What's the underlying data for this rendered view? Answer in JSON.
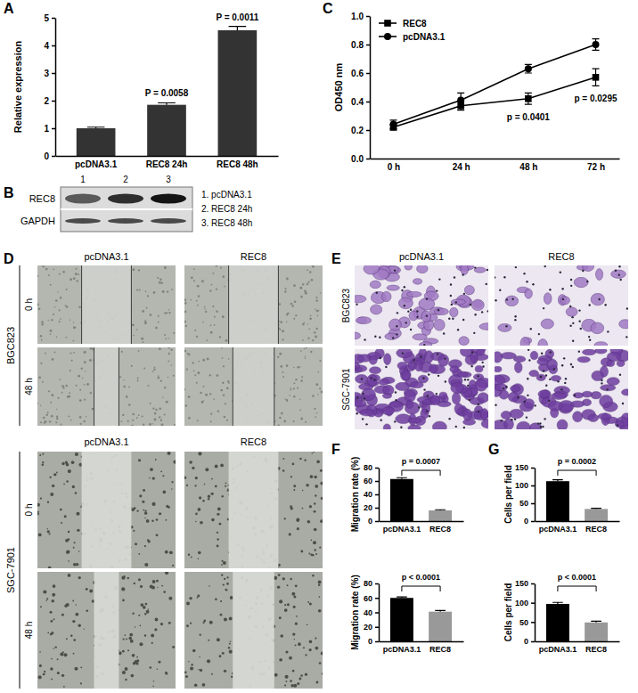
{
  "chart_data": [
    {
      "type": "bar",
      "y_label": "Relative expression",
      "categories": [
        "pcDNA3.1",
        "REC8 24h",
        "REC8 48h"
      ],
      "values": [
        1.0,
        1.85,
        4.55
      ],
      "errors": [
        0.04,
        0.07,
        0.14
      ],
      "color": "#333333",
      "ylim": [
        0,
        5
      ],
      "yticks": [
        0,
        1,
        2,
        3,
        4,
        5
      ],
      "annotations": [
        {
          "category": "REC8 24h",
          "text": "P = 0.0058"
        },
        {
          "category": "REC8 48h",
          "text": "P = 0.0011"
        }
      ]
    },
    {
      "type": "line",
      "y_label": "OD450 nm",
      "categories": [
        "0 h",
        "24 h",
        "48 h",
        "72 h"
      ],
      "series": [
        {
          "name": "REC8",
          "color": "#000000",
          "marker": "square",
          "values": [
            0.22,
            0.37,
            0.42,
            0.57
          ],
          "errors": [
            0.02,
            0.03,
            0.04,
            0.06
          ]
        },
        {
          "name": "pcDNA3.1",
          "color": "#000000",
          "marker": "circle",
          "values": [
            0.24,
            0.41,
            0.63,
            0.8
          ],
          "errors": [
            0.03,
            0.05,
            0.03,
            0.04
          ]
        }
      ],
      "ylim": [
        0,
        1
      ],
      "yticks": [
        {
          "value": 0,
          "label": "0.0"
        },
        {
          "value": 0.2,
          "label": "0.2"
        },
        {
          "value": 0.4,
          "label": "0.4"
        },
        {
          "value": 0.6,
          "label": "0.6"
        },
        {
          "value": 0.8,
          "label": "0.8"
        },
        {
          "value": 1,
          "label": "1.0"
        }
      ],
      "legend": "upper left",
      "annotations": [
        {
          "category": "48 h",
          "text": "p = 0.0401"
        },
        {
          "category": "72 h",
          "text": "p = 0.0295"
        }
      ]
    },
    {
      "type": "bar",
      "y_label": "Migration rate (%)",
      "categories": [
        "pcDNA3.1",
        "REC8"
      ],
      "values": [
        63,
        16
      ],
      "errors": [
        2,
        1
      ],
      "colors": [
        "#000000",
        "#999999"
      ],
      "ylim": [
        0,
        80
      ],
      "yticks": [
        0,
        20,
        40,
        60,
        80
      ],
      "annotations": [
        {
          "categories": [
            "pcDNA3.1",
            "REC8"
          ],
          "text": "p = 0.0007"
        }
      ]
    },
    {
      "type": "bar",
      "y_label": "Migration rate (%)",
      "categories": [
        "pcDNA3.1",
        "REC8"
      ],
      "values": [
        60,
        41
      ],
      "errors": [
        1.5,
        1.5
      ],
      "colors": [
        "#000000",
        "#999999"
      ],
      "ylim": [
        0,
        80
      ],
      "yticks": [
        0,
        20,
        40,
        60,
        80
      ],
      "annotations": [
        {
          "categories": [
            "pcDNA3.1",
            "REC8"
          ],
          "text": "p < 0.0001"
        }
      ]
    },
    {
      "type": "bar",
      "y_label": "Cells per field",
      "categories": [
        "pcDNA3.1",
        "REC8"
      ],
      "values": [
        112,
        34
      ],
      "errors": [
        4,
        2
      ],
      "colors": [
        "#000000",
        "#999999"
      ],
      "ylim": [
        0,
        150
      ],
      "yticks": [
        0,
        50,
        100,
        150
      ],
      "annotations": [
        {
          "categories": [
            "pcDNA3.1",
            "REC8"
          ],
          "text": "p = 0.0002"
        }
      ]
    },
    {
      "type": "bar",
      "y_label": "Cells per field",
      "categories": [
        "pcDNA3.1",
        "REC8"
      ],
      "values": [
        97,
        49
      ],
      "errors": [
        4,
        3
      ],
      "colors": [
        "#000000",
        "#999999"
      ],
      "ylim": [
        0,
        150
      ],
      "yticks": [
        0,
        50,
        100,
        150
      ],
      "annotations": [
        {
          "categories": [
            "pcDNA3.1",
            "REC8"
          ],
          "text": "p < 0.0001"
        }
      ]
    }
  ],
  "figure": {
    "panel_labels": [
      "A",
      "B",
      "C",
      "D",
      "E",
      "F",
      "G"
    ],
    "blot": {
      "lanes": [
        "1",
        "2",
        "3"
      ],
      "rows": [
        "REC8",
        "GAPDH"
      ],
      "key": [
        "1. pcDNA3.1",
        "2. REC8 24h",
        "3. REC8 48h"
      ]
    },
    "wound_healing": {
      "columns": [
        "pcDNA3.1",
        "REC8"
      ],
      "groups": [
        {
          "cell_line": "BGC823",
          "times": [
            "0 h",
            "48 h"
          ]
        },
        {
          "cell_line": "SGC-7901",
          "times": [
            "0 h",
            "48 h"
          ]
        }
      ]
    },
    "transwell": {
      "columns": [
        "pcDNA3.1",
        "REC8"
      ],
      "rows": [
        "BGC823",
        "SGC-7901"
      ]
    }
  }
}
